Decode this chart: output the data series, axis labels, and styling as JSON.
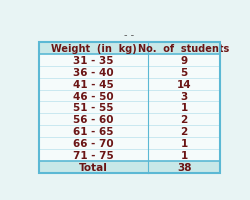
{
  "col1_header": "Weight  (in  kg)",
  "col2_header": "No.  of  students",
  "rows": [
    [
      "31 - 35",
      "9"
    ],
    [
      "36 - 40",
      "5"
    ],
    [
      "41 - 45",
      "14"
    ],
    [
      "46 - 50",
      "3"
    ],
    [
      "51 - 55",
      "1"
    ],
    [
      "56 - 60",
      "2"
    ],
    [
      "61 - 65",
      "2"
    ],
    [
      "66 - 70",
      "1"
    ],
    [
      "71 - 75",
      "1"
    ]
  ],
  "total_label": "Total",
  "total_value": "38",
  "bg_color": "#e8f4f4",
  "header_bg": "#c8e8e8",
  "total_bg": "#c8e8e8",
  "data_bg": "#f5fbfb",
  "border_color": "#5bb8d4",
  "text_color": "#6b1515",
  "header_fontsize": 7.0,
  "data_fontsize": 7.5,
  "dash_above": "- -"
}
